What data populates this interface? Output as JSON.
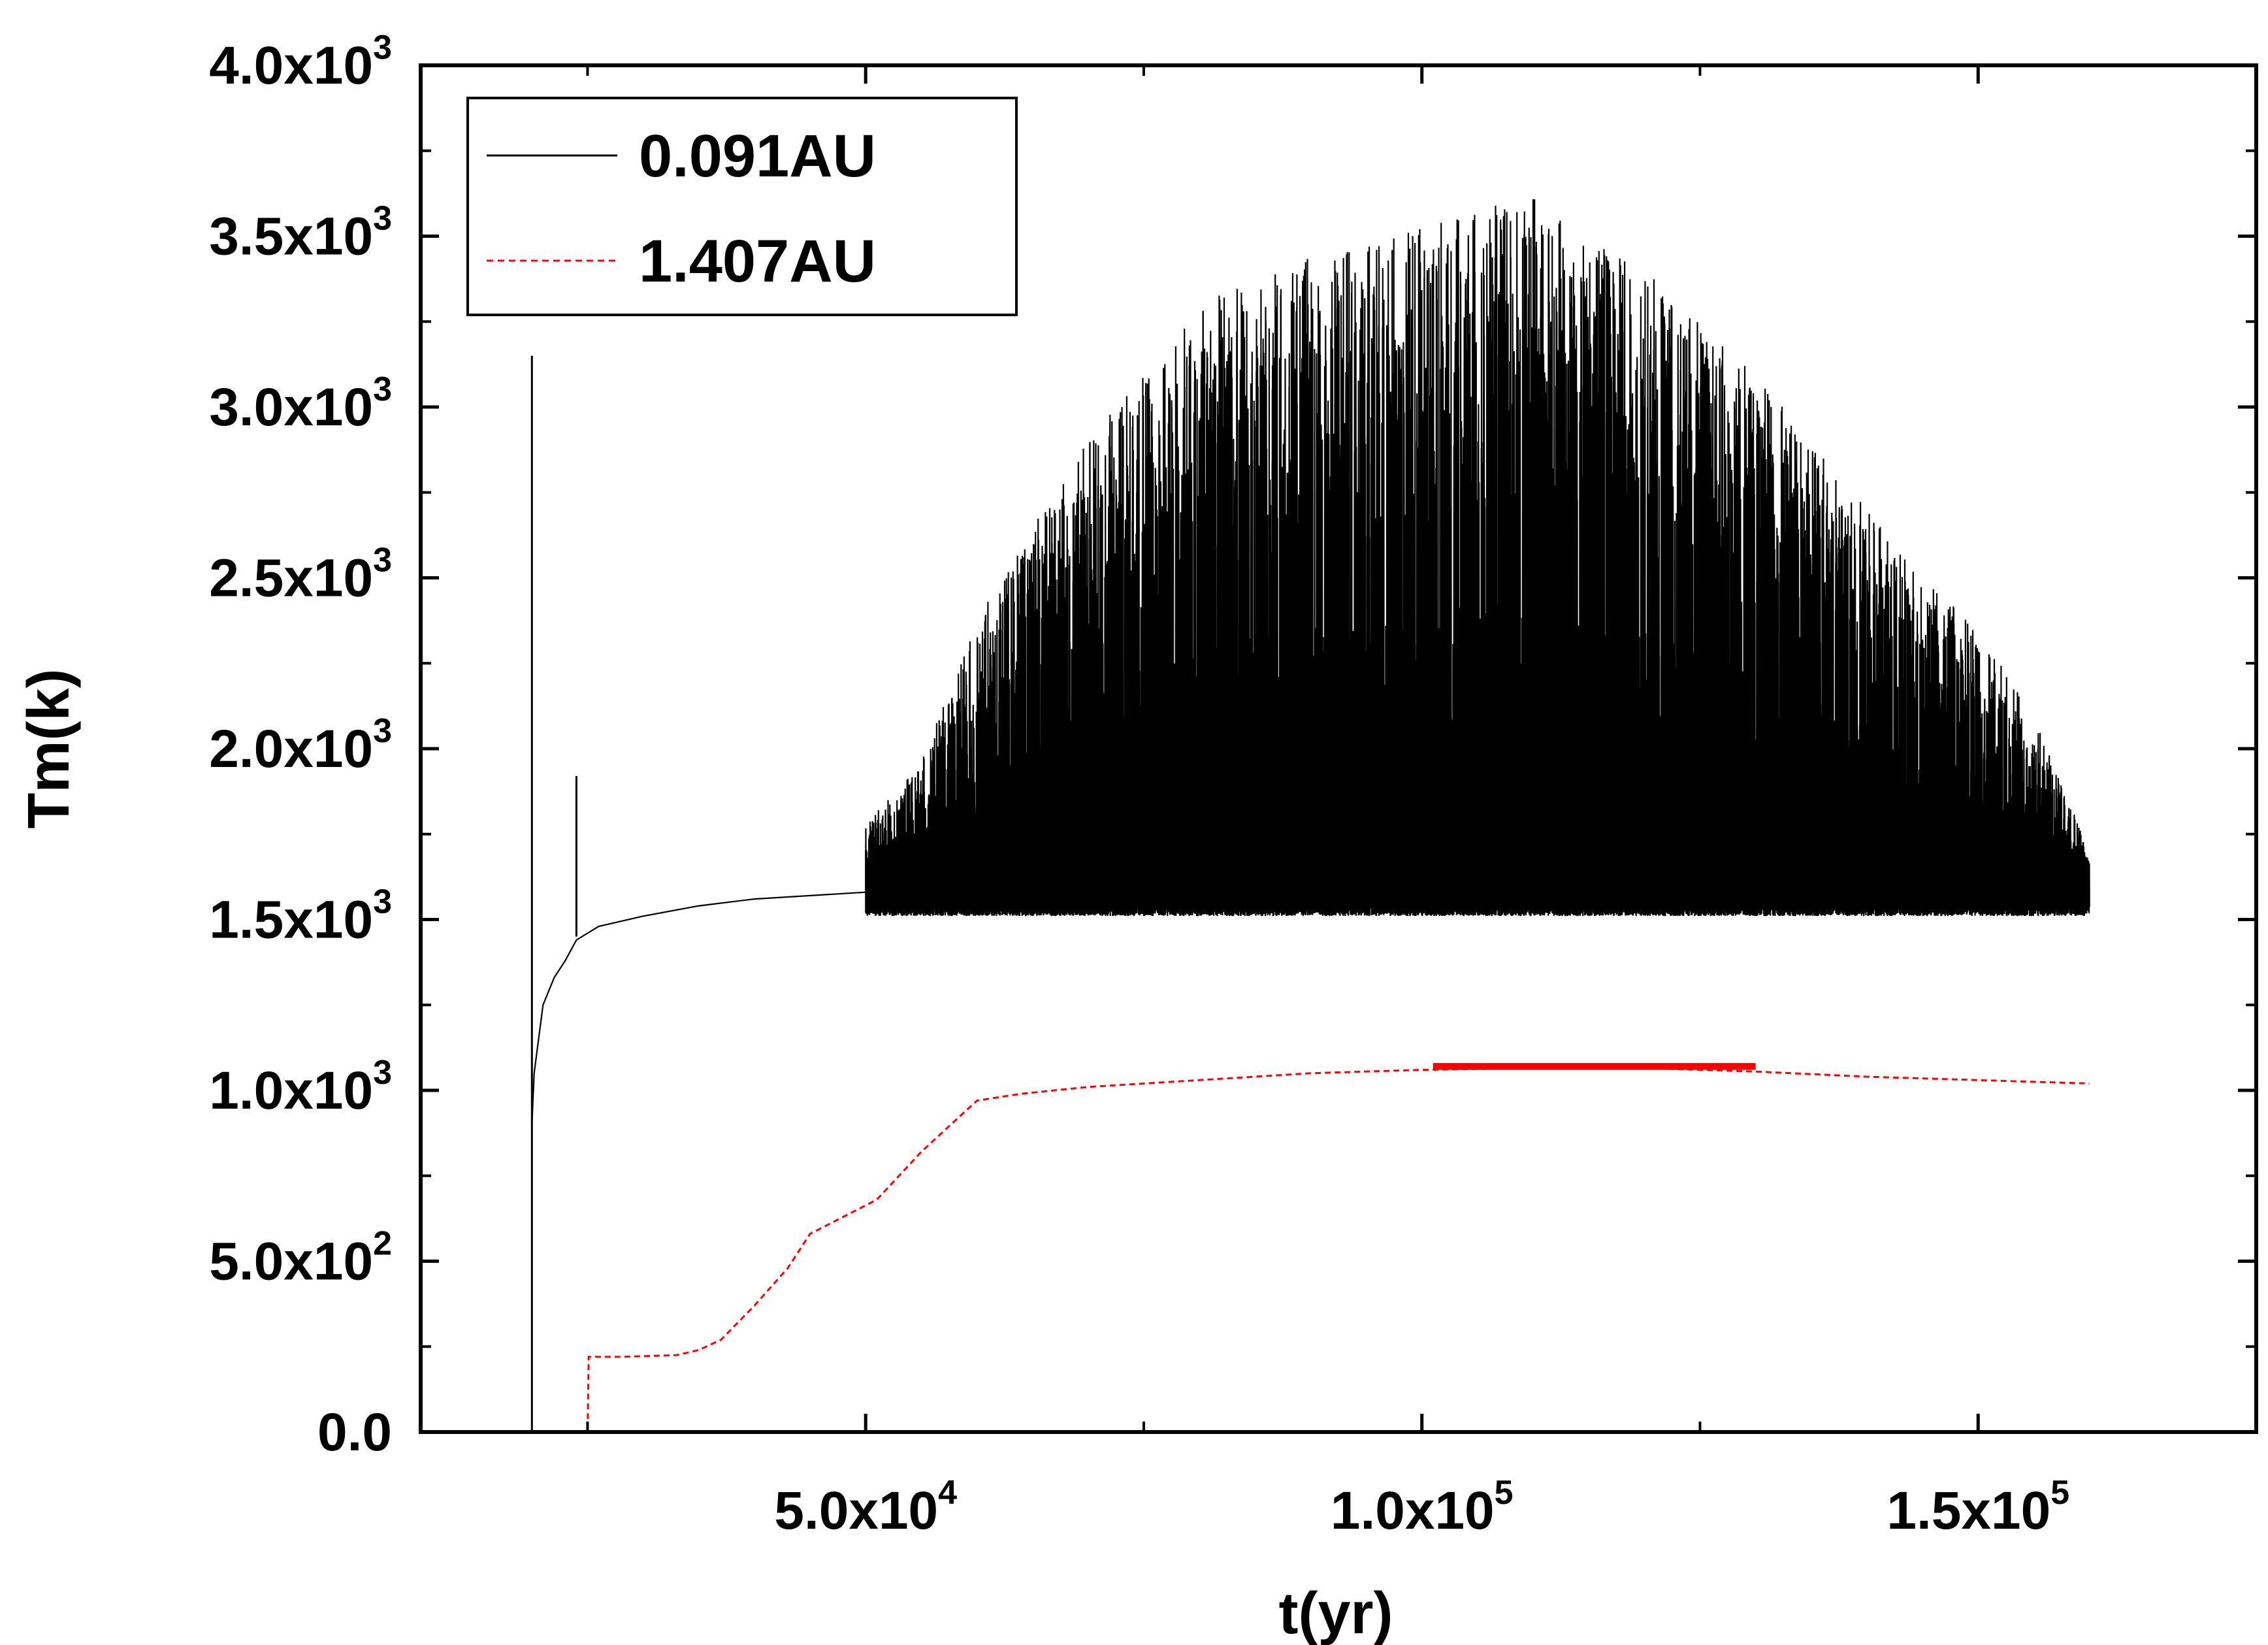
{
  "chart_data": {
    "type": "line",
    "title": "",
    "xlabel": "t(yr)",
    "ylabel": "Tm(k)",
    "xlim": [
      10000,
      175000
    ],
    "ylim": [
      0,
      4000
    ],
    "grid": false,
    "legend_position": "top-left",
    "x_ticks": [
      {
        "value": 50000,
        "mantissa": "5.0",
        "base": "x10",
        "exp": "4"
      },
      {
        "value": 100000,
        "mantissa": "1.0",
        "base": "x10",
        "exp": "5"
      },
      {
        "value": 150000,
        "mantissa": "1.5",
        "base": "x10",
        "exp": "5"
      }
    ],
    "x_minor_ticks": [
      25000,
      75000,
      125000
    ],
    "y_ticks": [
      {
        "value": 0,
        "mantissa": "0.0",
        "base": "",
        "exp": ""
      },
      {
        "value": 500,
        "mantissa": "5.0",
        "base": "x10",
        "exp": "2"
      },
      {
        "value": 1000,
        "mantissa": "1.0",
        "base": "x10",
        "exp": "3"
      },
      {
        "value": 1500,
        "mantissa": "1.5",
        "base": "x10",
        "exp": "3"
      },
      {
        "value": 2000,
        "mantissa": "2.0",
        "base": "x10",
        "exp": "3"
      },
      {
        "value": 2500,
        "mantissa": "2.5",
        "base": "x10",
        "exp": "3"
      },
      {
        "value": 3000,
        "mantissa": "3.0",
        "base": "x10",
        "exp": "3"
      },
      {
        "value": 3500,
        "mantissa": "3.5",
        "base": "x10",
        "exp": "3"
      },
      {
        "value": 4000,
        "mantissa": "4.0",
        "base": "x10",
        "exp": "3"
      }
    ],
    "y_minor_ticks": [
      250,
      750,
      1250,
      1750,
      2250,
      2750,
      3250,
      3750
    ],
    "series": [
      {
        "name": "0.091AU",
        "color": "#000000",
        "style": "solid",
        "x_start": 20000,
        "x_end": 160000,
        "spike_x": 20000,
        "spike_y": 3150,
        "spike2_x": 24000,
        "spike2_y": 1920,
        "rise": [
          [
            20000,
            900
          ],
          [
            20200,
            1050
          ],
          [
            21000,
            1250
          ],
          [
            22000,
            1330
          ],
          [
            23000,
            1380
          ],
          [
            24000,
            1440
          ],
          [
            26000,
            1480
          ],
          [
            30000,
            1510
          ],
          [
            35000,
            1540
          ],
          [
            40000,
            1560
          ],
          [
            50000,
            1580
          ]
        ],
        "band_baseline": 1540,
        "band_noise_top": 1640,
        "peak_envelope": [
          [
            20000,
            1500
          ],
          [
            30000,
            1620
          ],
          [
            40000,
            1660
          ],
          [
            45000,
            1700
          ],
          [
            50000,
            1780
          ],
          [
            55000,
            1960
          ],
          [
            60000,
            2380
          ],
          [
            65000,
            2650
          ],
          [
            70000,
            2900
          ],
          [
            75000,
            3100
          ],
          [
            80000,
            3300
          ],
          [
            90000,
            3450
          ],
          [
            100000,
            3530
          ],
          [
            110000,
            3620
          ],
          [
            115000,
            3500
          ],
          [
            120000,
            3400
          ],
          [
            125000,
            3250
          ],
          [
            130000,
            3100
          ],
          [
            135000,
            2900
          ],
          [
            140000,
            2700
          ],
          [
            145000,
            2500
          ],
          [
            150000,
            2350
          ],
          [
            155000,
            2100
          ],
          [
            160000,
            1700
          ]
        ]
      },
      {
        "name": "1.407AU",
        "color": "#ff0000",
        "style": "dashed",
        "points": [
          [
            20000,
            0
          ],
          [
            25000,
            0
          ],
          [
            25100,
            220
          ],
          [
            28000,
            220
          ],
          [
            33000,
            225
          ],
          [
            35000,
            240
          ],
          [
            37000,
            270
          ],
          [
            40000,
            370
          ],
          [
            43000,
            480
          ],
          [
            45000,
            580
          ],
          [
            48000,
            630
          ],
          [
            51000,
            680
          ],
          [
            55000,
            820
          ],
          [
            60000,
            970
          ],
          [
            64000,
            990
          ],
          [
            70000,
            1010
          ],
          [
            80000,
            1030
          ],
          [
            90000,
            1050
          ],
          [
            100000,
            1060
          ],
          [
            110000,
            1065
          ],
          [
            120000,
            1065
          ],
          [
            130000,
            1055
          ],
          [
            140000,
            1040
          ],
          [
            150000,
            1030
          ],
          [
            160000,
            1020
          ]
        ],
        "band_x": [
          101000,
          130000
        ],
        "band_y": [
          1060,
          1080
        ]
      }
    ]
  }
}
